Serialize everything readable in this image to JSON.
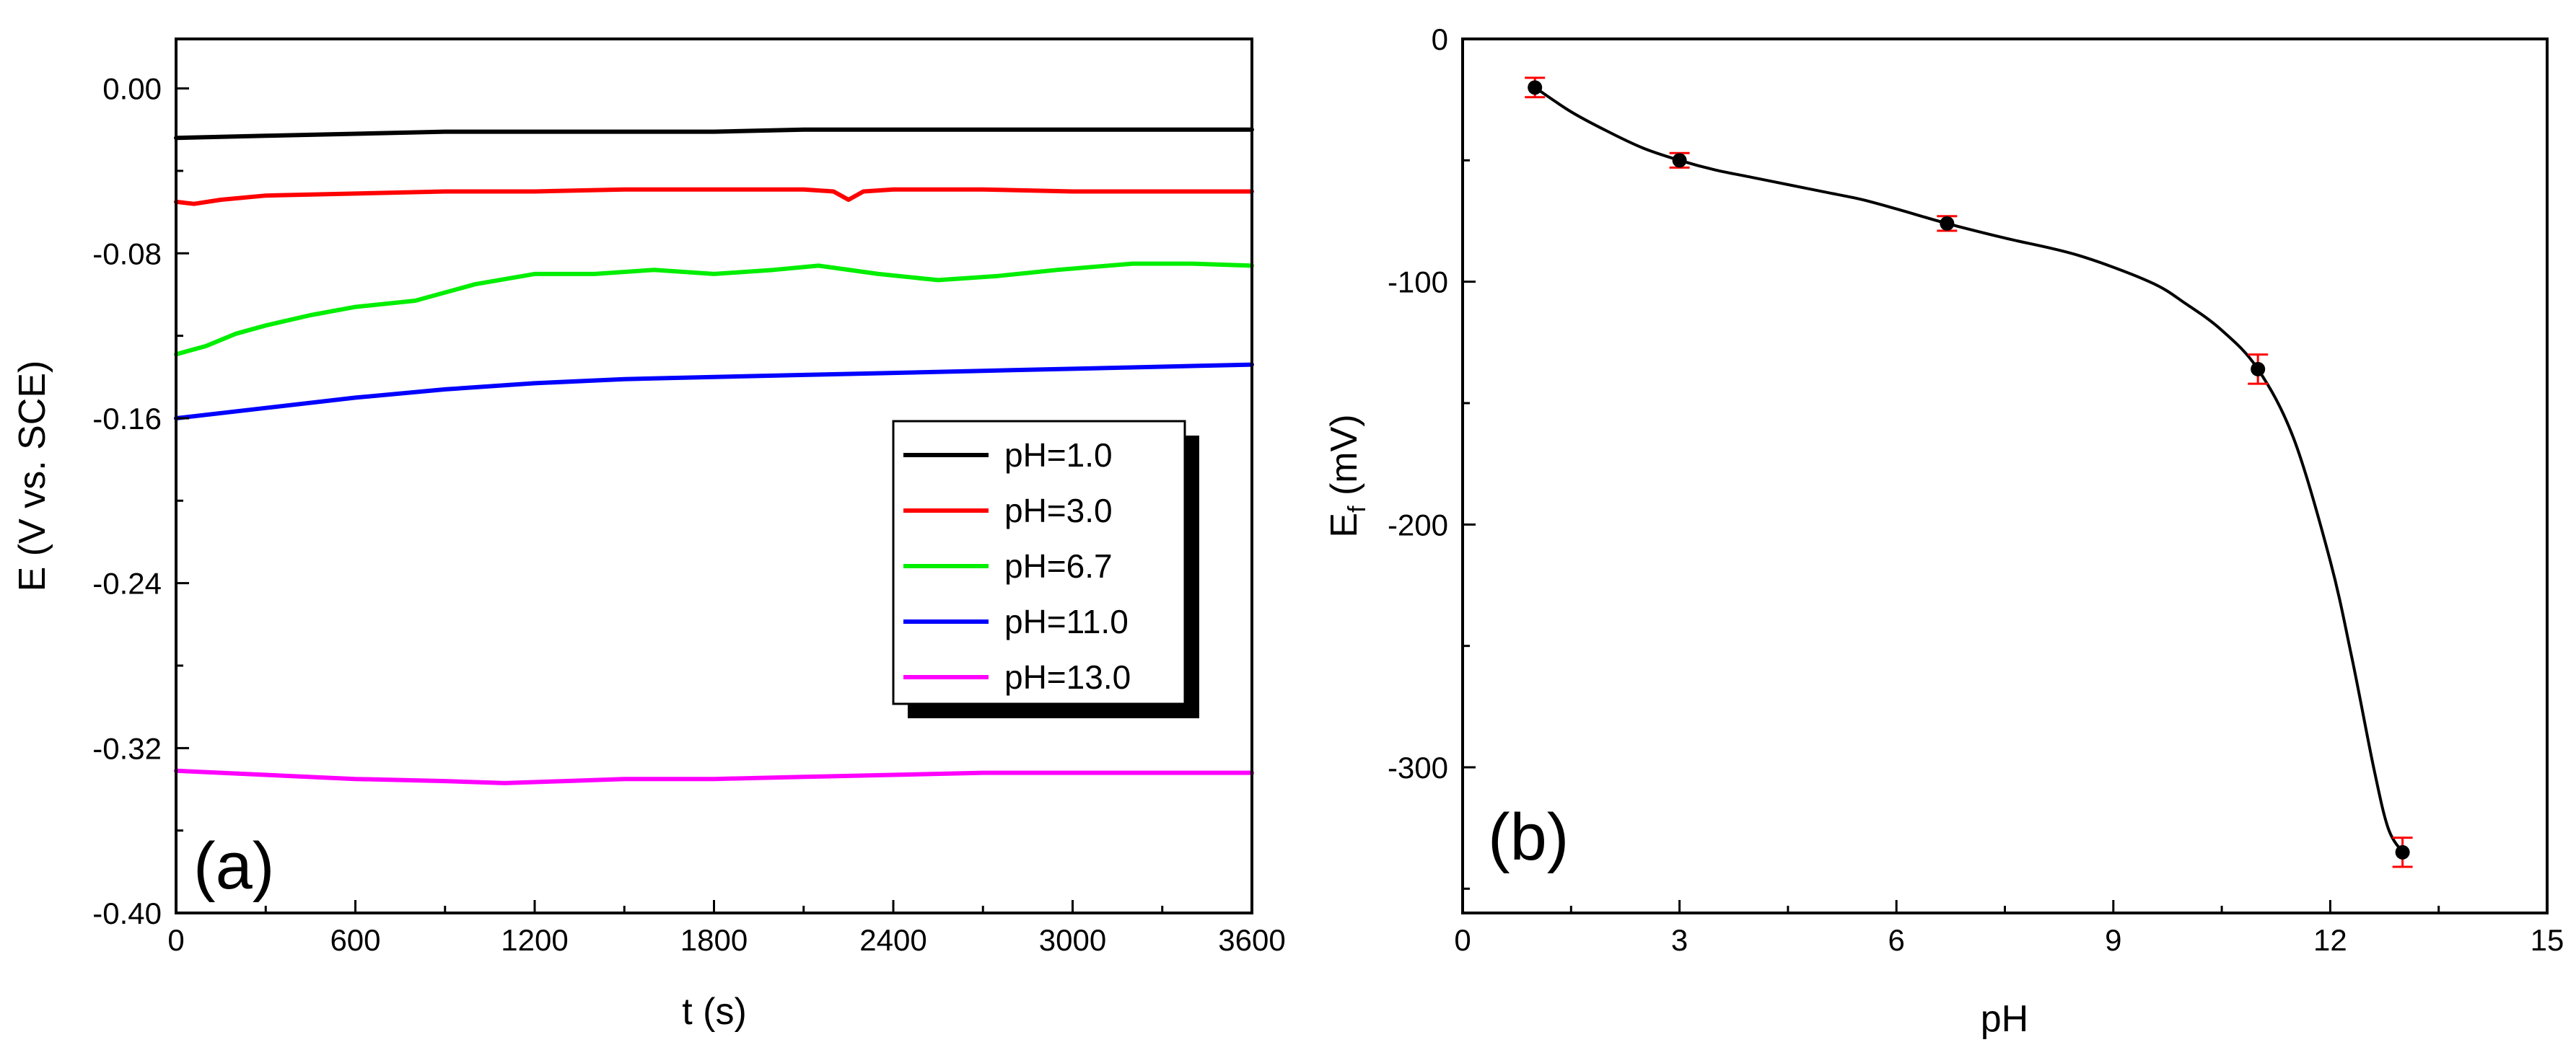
{
  "chart_data": [
    {
      "panel": "(a)",
      "type": "line",
      "xlabel": "t (s)",
      "ylabel": "E (V vs. SCE)",
      "xlim": [
        0,
        3600
      ],
      "ylim": [
        -0.4,
        0.024
      ],
      "x_ticks": [
        "0",
        "600",
        "1200",
        "1800",
        "2400",
        "3000",
        "3600"
      ],
      "y_ticks": [
        "0.00",
        "-0.08",
        "-0.16",
        "-0.24",
        "-0.32",
        "-0.40"
      ],
      "legend_position": "center-right",
      "series": [
        {
          "name": "pH=1.0",
          "color": "#000000",
          "x": [
            0,
            300,
            600,
            900,
            1200,
            1500,
            1800,
            2100,
            2400,
            2700,
            3000,
            3300,
            3600
          ],
          "y": [
            -0.024,
            -0.023,
            -0.022,
            -0.021,
            -0.021,
            -0.021,
            -0.021,
            -0.02,
            -0.02,
            -0.02,
            -0.02,
            -0.02,
            -0.02
          ]
        },
        {
          "name": "pH=3.0",
          "color": "#ff0000",
          "x": [
            0,
            60,
            150,
            300,
            600,
            900,
            1200,
            1500,
            1800,
            2100,
            2200,
            2250,
            2300,
            2400,
            2700,
            3000,
            3300,
            3600
          ],
          "y": [
            -0.055,
            -0.056,
            -0.054,
            -0.052,
            -0.051,
            -0.05,
            -0.05,
            -0.049,
            -0.049,
            -0.049,
            -0.05,
            -0.054,
            -0.05,
            -0.049,
            -0.049,
            -0.05,
            -0.05,
            -0.05
          ]
        },
        {
          "name": "pH=6.7",
          "color": "#00ee00",
          "x": [
            0,
            100,
            200,
            300,
            450,
            600,
            800,
            1000,
            1200,
            1400,
            1600,
            1800,
            2000,
            2150,
            2350,
            2550,
            2750,
            2950,
            3200,
            3400,
            3600
          ],
          "y": [
            -0.129,
            -0.125,
            -0.119,
            -0.115,
            -0.11,
            -0.106,
            -0.103,
            -0.095,
            -0.09,
            -0.09,
            -0.088,
            -0.09,
            -0.088,
            -0.086,
            -0.09,
            -0.093,
            -0.091,
            -0.088,
            -0.085,
            -0.085,
            -0.086
          ]
        },
        {
          "name": "pH=11.0",
          "color": "#0000ff",
          "x": [
            0,
            300,
            600,
            900,
            1200,
            1500,
            1800,
            2100,
            2400,
            2700,
            3000,
            3300,
            3600
          ],
          "y": [
            -0.16,
            -0.155,
            -0.15,
            -0.146,
            -0.143,
            -0.141,
            -0.14,
            -0.139,
            -0.138,
            -0.137,
            -0.136,
            -0.135,
            -0.134
          ]
        },
        {
          "name": "pH=13.0",
          "color": "#ff00ff",
          "x": [
            0,
            300,
            600,
            900,
            1100,
            1300,
            1500,
            1800,
            2100,
            2400,
            2700,
            3000,
            3300,
            3600
          ],
          "y": [
            -0.331,
            -0.333,
            -0.335,
            -0.336,
            -0.337,
            -0.336,
            -0.335,
            -0.335,
            -0.334,
            -0.333,
            -0.332,
            -0.332,
            -0.332,
            -0.332
          ]
        }
      ]
    },
    {
      "panel": "(b)",
      "type": "scatter",
      "xlabel": "pH",
      "ylabel_main": "E",
      "ylabel_sub": "f",
      "ylabel_unit": " (mV)",
      "xlim": [
        0,
        15
      ],
      "ylim": [
        -360,
        0
      ],
      "x_ticks": [
        "0",
        "3",
        "6",
        "9",
        "12",
        "15"
      ],
      "y_ticks": [
        "0",
        "-100",
        "-200",
        "-300"
      ],
      "marker_color": "#000000",
      "error_color": "#ff0000",
      "points": {
        "x": [
          1.0,
          3.0,
          6.7,
          11.0,
          13.0
        ],
        "y": [
          -20,
          -50,
          -76,
          -136,
          -335
        ],
        "err": [
          4,
          3,
          3,
          6,
          6
        ]
      },
      "fit_line": {
        "x": [
          1.0,
          1.5,
          2.0,
          2.5,
          3.0,
          3.5,
          4.0,
          4.5,
          5.0,
          5.5,
          6.0,
          6.7,
          7.5,
          8.5,
          9.5,
          10.0,
          10.5,
          11.0,
          11.5,
          12.0,
          12.3,
          12.6,
          12.8,
          13.0
        ],
        "y": [
          -20,
          -30,
          -38,
          -45,
          -50,
          -54,
          -57,
          -60,
          -63,
          -66,
          -70,
          -76,
          -82,
          -89,
          -100,
          -109,
          -120,
          -136,
          -165,
          -215,
          -255,
          -300,
          -325,
          -335
        ]
      }
    }
  ]
}
